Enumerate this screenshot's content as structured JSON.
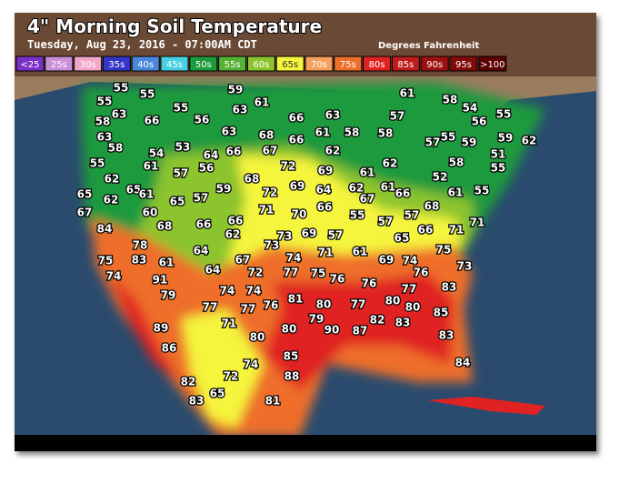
{
  "header": {
    "title": "4\" Morning Soil Temperature",
    "subtitle": "Tuesday, Aug 23, 2016 - 07:00AM CDT",
    "units": "Degrees Fahrenheit"
  },
  "legend": [
    {
      "label": "<25",
      "color": "#7b2fc9"
    },
    {
      "label": "25s",
      "color": "#c98fd9"
    },
    {
      "label": "30s",
      "color": "#f2a7c9"
    },
    {
      "label": "35s",
      "color": "#3535c8"
    },
    {
      "label": "40s",
      "color": "#4a86dc"
    },
    {
      "label": "45s",
      "color": "#45cfe0"
    },
    {
      "label": "50s",
      "color": "#1c9a3c"
    },
    {
      "label": "55s",
      "color": "#56b234"
    },
    {
      "label": "60s",
      "color": "#8cc42e"
    },
    {
      "label": "65s",
      "color": "#f5f53c"
    },
    {
      "label": "70s",
      "color": "#f5a05c"
    },
    {
      "label": "75s",
      "color": "#ee6e2c"
    },
    {
      "label": "80s",
      "color": "#e02222"
    },
    {
      "label": "85s",
      "color": "#c01a1a"
    },
    {
      "label": "90s",
      "color": "#9e1010"
    },
    {
      "label": "95s",
      "color": "#800a0a"
    },
    {
      "label": ">100",
      "color": "#5c0000"
    }
  ],
  "stations": [
    55,
    55,
    59,
    61,
    58,
    54,
    55,
    63,
    66,
    55,
    56,
    63,
    61,
    66,
    63,
    57,
    56,
    55,
    58,
    63,
    58,
    63,
    68,
    66,
    61,
    58,
    58,
    55,
    57,
    59,
    59,
    62,
    54,
    53,
    64,
    66,
    67,
    61,
    57,
    56,
    72,
    62,
    55,
    69,
    61,
    62,
    58,
    51,
    55,
    52,
    62,
    68,
    65,
    61,
    59,
    72,
    69,
    64,
    62,
    67,
    61,
    66,
    61,
    55,
    65,
    62,
    65,
    57,
    68,
    67,
    60,
    71,
    70,
    66,
    55,
    57,
    57,
    66,
    71,
    84,
    68,
    66,
    66,
    62,
    73,
    73,
    69,
    57,
    65,
    71,
    61,
    78,
    64,
    75,
    83,
    61,
    74,
    71,
    67,
    69,
    74,
    75,
    73,
    74,
    64,
    72,
    77,
    75,
    76,
    76,
    91,
    76,
    77,
    83,
    79,
    74,
    74,
    81,
    80,
    77,
    80,
    80,
    85,
    77,
    77,
    76,
    79,
    90,
    87,
    82,
    83,
    89,
    71,
    80,
    80,
    83,
    86,
    85,
    84,
    74,
    88,
    82,
    72,
    83,
    65,
    81
  ]
}
